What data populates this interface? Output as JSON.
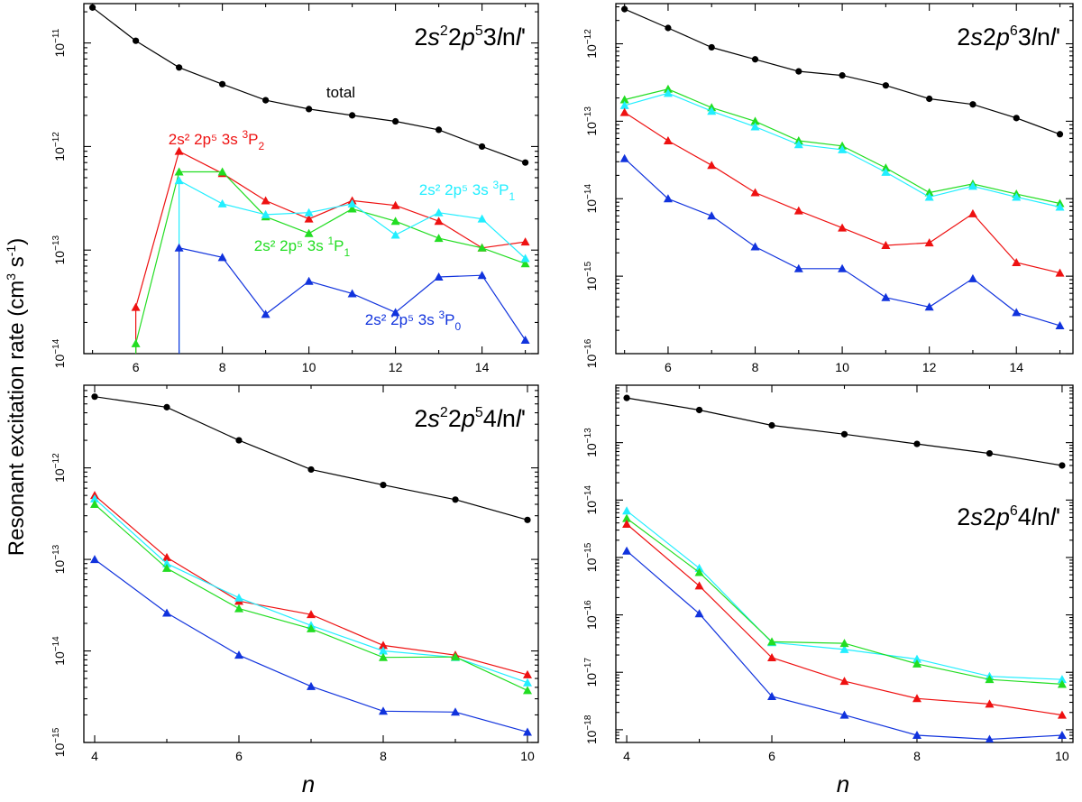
{
  "chart_data": [
    {
      "type": "line",
      "title": "2s22p53lnl'",
      "xlim": [
        4.8,
        15.3
      ],
      "ylim": [
        1e-14,
        2.4e-11
      ],
      "xticks": [
        6,
        8,
        10,
        12,
        14
      ],
      "yticks": [
        {
          "value": 1e-14,
          "base": "10",
          "exp": "−14"
        },
        {
          "value": 1e-13,
          "base": "10",
          "exp": "−13"
        },
        {
          "value": 1e-12,
          "base": "10",
          "exp": "−12"
        },
        {
          "value": 1e-11,
          "base": "10",
          "exp": "−11"
        }
      ],
      "series": [
        {
          "name": "total",
          "color": "#000000",
          "marker": "circle",
          "x": [
            5,
            6,
            7,
            8,
            9,
            10,
            11,
            12,
            13,
            14,
            15
          ],
          "values": [
            2.2e-11,
            1.05e-11,
            5.8e-12,
            4e-12,
            2.8e-12,
            2.3e-12,
            2e-12,
            1.75e-12,
            1.45e-12,
            1e-12,
            7e-13
          ]
        },
        {
          "name": "3P2",
          "color": "#ee1111",
          "marker": "triangle",
          "x": [
            6,
            6,
            7,
            8,
            9,
            10,
            11,
            12,
            13,
            14,
            15
          ],
          "values": [
            1e-14,
            2.8e-14,
            9e-13,
            5.5e-13,
            3e-13,
            2e-13,
            3e-13,
            2.7e-13,
            1.9e-13,
            1.05e-13,
            1.2e-13
          ]
        },
        {
          "name": "1P1",
          "color": "#22dd22",
          "marker": "triangle",
          "x": [
            6,
            6,
            7,
            8,
            9,
            10,
            11,
            12,
            13,
            14,
            15
          ],
          "values": [
            1e-14,
            1.25e-14,
            5.7e-13,
            5.7e-13,
            2.1e-13,
            1.45e-13,
            2.5e-13,
            1.9e-13,
            1.3e-13,
            1.05e-13,
            7.4e-14
          ]
        },
        {
          "name": "3P1",
          "color": "#22eeff",
          "marker": "triangle",
          "x": [
            7,
            7,
            8,
            9,
            10,
            11,
            12,
            13,
            14,
            15
          ],
          "values": [
            1e-14,
            4.7e-13,
            2.8e-13,
            2.2e-13,
            2.3e-13,
            2.8e-13,
            1.4e-13,
            2.3e-13,
            2e-13,
            8.3e-14
          ]
        },
        {
          "name": "3P0",
          "color": "#1133dd",
          "marker": "triangle",
          "x": [
            7,
            7,
            8,
            9,
            10,
            11,
            12,
            13,
            14,
            15
          ],
          "values": [
            1e-14,
            1.05e-13,
            8.5e-14,
            2.4e-14,
            5e-14,
            3.8e-14,
            2.5e-14,
            5.5e-14,
            5.7e-14,
            1.35e-14
          ]
        }
      ],
      "annotations": [
        {
          "prefix": "total",
          "sup": "",
          "term": "",
          "sub": "",
          "color": "#000000"
        },
        {
          "prefix": "2s² 2p⁵ 3s ",
          "sup": "3",
          "term": "P",
          "sub": "2",
          "color": "#ee1111"
        },
        {
          "prefix": "2s² 2p⁵ 3s ",
          "sup": "3",
          "term": "P",
          "sub": "1",
          "color": "#22eeff"
        },
        {
          "prefix": "2s² 2p⁵ 3s ",
          "sup": "1",
          "term": "P",
          "sub": "1",
          "color": "#22dd22"
        },
        {
          "prefix": "2s² 2p⁵ 3s ",
          "sup": "3",
          "term": "P",
          "sub": "0",
          "color": "#1133dd"
        }
      ]
    },
    {
      "type": "line",
      "title": "2s2p63lnl'",
      "xlim": [
        4.8,
        15.3
      ],
      "ylim": [
        1e-16,
        3.3e-12
      ],
      "xticks": [
        6,
        8,
        10,
        12,
        14
      ],
      "yticks": [
        {
          "value": 1e-16,
          "base": "10",
          "exp": "−16"
        },
        {
          "value": 1e-15,
          "base": "10",
          "exp": "−15"
        },
        {
          "value": 1e-14,
          "base": "10",
          "exp": "−14"
        },
        {
          "value": 1e-13,
          "base": "10",
          "exp": "−13"
        },
        {
          "value": 1e-12,
          "base": "10",
          "exp": "−12"
        }
      ],
      "series": [
        {
          "name": "total",
          "color": "#000000",
          "marker": "circle",
          "x": [
            5,
            6,
            7,
            8,
            9,
            10,
            11,
            12,
            13,
            14,
            15
          ],
          "values": [
            2.8e-12,
            1.6e-12,
            9e-13,
            6.3e-13,
            4.4e-13,
            3.9e-13,
            2.9e-13,
            1.95e-13,
            1.65e-13,
            1.1e-13,
            6.8e-14
          ]
        },
        {
          "name": "green",
          "color": "#22dd22",
          "marker": "triangle",
          "x": [
            5,
            6,
            7,
            8,
            9,
            10,
            11,
            12,
            13,
            14,
            15
          ],
          "values": [
            1.9e-13,
            2.6e-13,
            1.5e-13,
            1e-13,
            5.6e-14,
            4.8e-14,
            2.5e-14,
            1.2e-14,
            1.55e-14,
            1.15e-14,
            8.7e-15
          ]
        },
        {
          "name": "cyan",
          "color": "#22eeff",
          "marker": "triangle",
          "x": [
            5,
            6,
            7,
            8,
            9,
            10,
            11,
            12,
            13,
            14,
            15
          ],
          "values": [
            1.6e-13,
            2.3e-13,
            1.35e-13,
            8.5e-14,
            5e-14,
            4.3e-14,
            2.2e-14,
            1.05e-14,
            1.45e-14,
            1.05e-14,
            7.8e-15
          ]
        },
        {
          "name": "red",
          "color": "#ee1111",
          "marker": "triangle",
          "x": [
            5,
            6,
            7,
            8,
            9,
            10,
            11,
            12,
            13,
            14,
            15
          ],
          "values": [
            1.3e-13,
            5.6e-14,
            2.7e-14,
            1.2e-14,
            7e-15,
            4.2e-15,
            2.5e-15,
            2.7e-15,
            6.4e-15,
            1.5e-15,
            1.1e-15
          ]
        },
        {
          "name": "blue",
          "color": "#1133dd",
          "marker": "triangle",
          "x": [
            5,
            6,
            7,
            8,
            9,
            10,
            11,
            12,
            13,
            14,
            15
          ],
          "values": [
            3.3e-14,
            1e-14,
            6e-15,
            2.4e-15,
            1.25e-15,
            1.25e-15,
            5.3e-16,
            4e-16,
            9.3e-16,
            3.4e-16,
            2.3e-16
          ]
        }
      ],
      "annotations": []
    },
    {
      "type": "line",
      "title": "2s22p54lnl'",
      "xlim": [
        3.85,
        10.15
      ],
      "ylim": [
        1e-15,
        8e-12
      ],
      "xticks": [
        4,
        6,
        8,
        10
      ],
      "yticks": [
        {
          "value": 1e-15,
          "base": "10",
          "exp": "−15"
        },
        {
          "value": 1e-14,
          "base": "10",
          "exp": "−14"
        },
        {
          "value": 1e-13,
          "base": "10",
          "exp": "−13"
        },
        {
          "value": 1e-12,
          "base": "10",
          "exp": "−12"
        }
      ],
      "series": [
        {
          "name": "total",
          "color": "#000000",
          "marker": "circle",
          "x": [
            4,
            5,
            6,
            7,
            8,
            9,
            10
          ],
          "values": [
            6e-12,
            4.6e-12,
            2e-12,
            9.6e-13,
            6.5e-13,
            4.5e-13,
            2.7e-13
          ]
        },
        {
          "name": "red",
          "color": "#ee1111",
          "marker": "triangle",
          "x": [
            4,
            5,
            6,
            7,
            8,
            9,
            10
          ],
          "values": [
            5e-13,
            1.05e-13,
            3.5e-14,
            2.5e-14,
            1.15e-14,
            9e-15,
            5.5e-15
          ]
        },
        {
          "name": "cyan",
          "color": "#22eeff",
          "marker": "triangle",
          "x": [
            4,
            5,
            6,
            7,
            8,
            9,
            10
          ],
          "values": [
            4.6e-13,
            9e-14,
            3.8e-14,
            1.9e-14,
            1e-14,
            8.5e-15,
            4.5e-15
          ]
        },
        {
          "name": "green",
          "color": "#22dd22",
          "marker": "triangle",
          "x": [
            4,
            5,
            6,
            7,
            8,
            9,
            10
          ],
          "values": [
            4e-13,
            8e-14,
            2.9e-14,
            1.75e-14,
            8.5e-15,
            8.6e-15,
            3.7e-15
          ]
        },
        {
          "name": "blue",
          "color": "#1133dd",
          "marker": "triangle",
          "x": [
            4,
            5,
            6,
            7,
            8,
            9,
            10
          ],
          "values": [
            1e-13,
            2.6e-14,
            9e-15,
            4.1e-15,
            2.2e-15,
            2.15e-15,
            1.3e-15
          ]
        }
      ],
      "annotations": []
    },
    {
      "type": "line",
      "title": "2s2p64lnl'",
      "xlim": [
        3.85,
        10.15
      ],
      "ylim": [
        6e-19,
        1e-12
      ],
      "xticks": [
        4,
        6,
        8,
        10
      ],
      "yticks": [
        {
          "value": 1e-18,
          "base": "10",
          "exp": "−18"
        },
        {
          "value": 1e-17,
          "base": "10",
          "exp": "−17"
        },
        {
          "value": 1e-16,
          "base": "10",
          "exp": "−16"
        },
        {
          "value": 1e-15,
          "base": "10",
          "exp": "−15"
        },
        {
          "value": 1e-14,
          "base": "10",
          "exp": "−14"
        },
        {
          "value": 1e-13,
          "base": "10",
          "exp": "−13"
        }
      ],
      "series": [
        {
          "name": "total",
          "color": "#000000",
          "marker": "circle",
          "x": [
            4,
            5,
            6,
            7,
            8,
            9,
            10
          ],
          "values": [
            6e-13,
            3.7e-13,
            2e-13,
            1.4e-13,
            9.5e-14,
            6.5e-14,
            4e-14
          ]
        },
        {
          "name": "cyan",
          "color": "#22eeff",
          "marker": "triangle",
          "x": [
            4,
            5,
            6,
            7,
            8,
            9,
            10
          ],
          "values": [
            6.5e-15,
            6.5e-16,
            3.3e-17,
            2.5e-17,
            1.7e-17,
            8.5e-18,
            7.5e-18
          ]
        },
        {
          "name": "green",
          "color": "#22dd22",
          "marker": "triangle",
          "x": [
            4,
            5,
            6,
            7,
            8,
            9,
            10
          ],
          "values": [
            4.8e-15,
            5.5e-16,
            3.4e-17,
            3.2e-17,
            1.4e-17,
            7.5e-18,
            6.2e-18
          ]
        },
        {
          "name": "red",
          "color": "#ee1111",
          "marker": "triangle",
          "x": [
            4,
            5,
            6,
            7,
            8,
            9,
            10
          ],
          "values": [
            3.8e-15,
            3.2e-16,
            1.8e-17,
            7e-18,
            3.5e-18,
            2.8e-18,
            1.8e-18
          ]
        },
        {
          "name": "blue",
          "color": "#1133dd",
          "marker": "triangle",
          "x": [
            4,
            5,
            6,
            7,
            8,
            9,
            10
          ],
          "values": [
            1.3e-15,
            1.05e-16,
            3.8e-18,
            1.8e-18,
            8e-19,
            6.8e-19,
            8e-19
          ]
        }
      ],
      "annotations": []
    }
  ],
  "labels": {
    "ylabel_main": "Resonant excitation rate (cm",
    "ylabel_sup1": "3",
    "ylabel_mid": " s",
    "ylabel_sup2": "-1",
    "ylabel_end": ")",
    "xlabel": "n"
  }
}
